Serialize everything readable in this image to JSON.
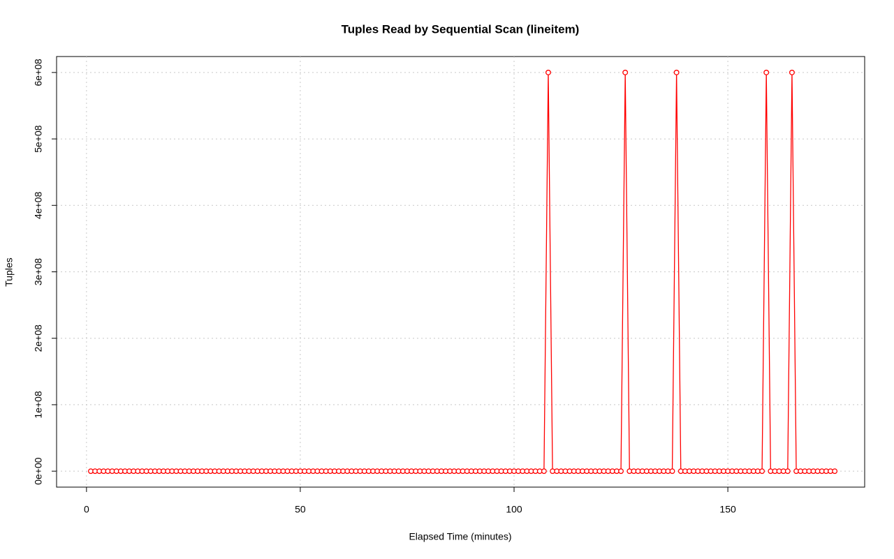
{
  "chart_data": {
    "type": "line",
    "title": "Tuples Read by Sequential Scan (lineitem)",
    "x_label": "Elapsed Time (minutes)",
    "y_label": "Tuples",
    "color": "#ff0000",
    "marker": "circle",
    "grid": true,
    "xlim": [
      -7,
      182
    ],
    "ylim": [
      -24000000,
      624000000
    ],
    "xticks": [
      0,
      50,
      100,
      150
    ],
    "yticks": [
      {
        "value": 0,
        "label": "0e+00"
      },
      {
        "value": 100000000,
        "label": "1e+08"
      },
      {
        "value": 200000000,
        "label": "2e+08"
      },
      {
        "value": 300000000,
        "label": "3e+08"
      },
      {
        "value": 400000000,
        "label": "4e+08"
      },
      {
        "value": 500000000,
        "label": "5e+08"
      },
      {
        "value": 600000000,
        "label": "6e+08"
      }
    ],
    "x": [
      1,
      2,
      3,
      4,
      5,
      6,
      7,
      8,
      9,
      10,
      11,
      12,
      13,
      14,
      15,
      16,
      17,
      18,
      19,
      20,
      21,
      22,
      23,
      24,
      25,
      26,
      27,
      28,
      29,
      30,
      31,
      32,
      33,
      34,
      35,
      36,
      37,
      38,
      39,
      40,
      41,
      42,
      43,
      44,
      45,
      46,
      47,
      48,
      49,
      50,
      51,
      52,
      53,
      54,
      55,
      56,
      57,
      58,
      59,
      60,
      61,
      62,
      63,
      64,
      65,
      66,
      67,
      68,
      69,
      70,
      71,
      72,
      73,
      74,
      75,
      76,
      77,
      78,
      79,
      80,
      81,
      82,
      83,
      84,
      85,
      86,
      87,
      88,
      89,
      90,
      91,
      92,
      93,
      94,
      95,
      96,
      97,
      98,
      99,
      100,
      101,
      102,
      103,
      104,
      105,
      106,
      107,
      108,
      109,
      110,
      111,
      112,
      113,
      114,
      115,
      116,
      117,
      118,
      119,
      120,
      121,
      122,
      123,
      124,
      125,
      126,
      127,
      128,
      129,
      130,
      131,
      132,
      133,
      134,
      135,
      136,
      137,
      138,
      139,
      140,
      141,
      142,
      143,
      144,
      145,
      146,
      147,
      148,
      149,
      150,
      151,
      152,
      153,
      154,
      155,
      156,
      157,
      158,
      159,
      160,
      161,
      162,
      163,
      164,
      165,
      166,
      167,
      168,
      169,
      170,
      171,
      172,
      173,
      174,
      175
    ],
    "values": [
      0,
      0,
      0,
      0,
      0,
      0,
      0,
      0,
      0,
      0,
      0,
      0,
      0,
      0,
      0,
      0,
      0,
      0,
      0,
      0,
      0,
      0,
      0,
      0,
      0,
      0,
      0,
      0,
      0,
      0,
      0,
      0,
      0,
      0,
      0,
      0,
      0,
      0,
      0,
      0,
      0,
      0,
      0,
      0,
      0,
      0,
      0,
      0,
      0,
      0,
      0,
      0,
      0,
      0,
      0,
      0,
      0,
      0,
      0,
      0,
      0,
      0,
      0,
      0,
      0,
      0,
      0,
      0,
      0,
      0,
      0,
      0,
      0,
      0,
      0,
      0,
      0,
      0,
      0,
      0,
      0,
      0,
      0,
      0,
      0,
      0,
      0,
      0,
      0,
      0,
      0,
      0,
      0,
      0,
      0,
      0,
      0,
      0,
      0,
      0,
      0,
      0,
      0,
      0,
      0,
      0,
      0,
      600000000,
      0,
      0,
      0,
      0,
      0,
      0,
      0,
      0,
      0,
      0,
      0,
      0,
      0,
      0,
      0,
      0,
      0,
      600000000,
      0,
      0,
      0,
      0,
      0,
      0,
      0,
      0,
      0,
      0,
      0,
      600000000,
      0,
      0,
      0,
      0,
      0,
      0,
      0,
      0,
      0,
      0,
      0,
      0,
      0,
      0,
      0,
      0,
      0,
      0,
      0,
      0,
      600000000,
      0,
      0,
      0,
      0,
      0,
      600000000,
      0,
      0,
      0,
      0,
      0,
      0,
      0,
      0,
      0,
      0
    ]
  }
}
